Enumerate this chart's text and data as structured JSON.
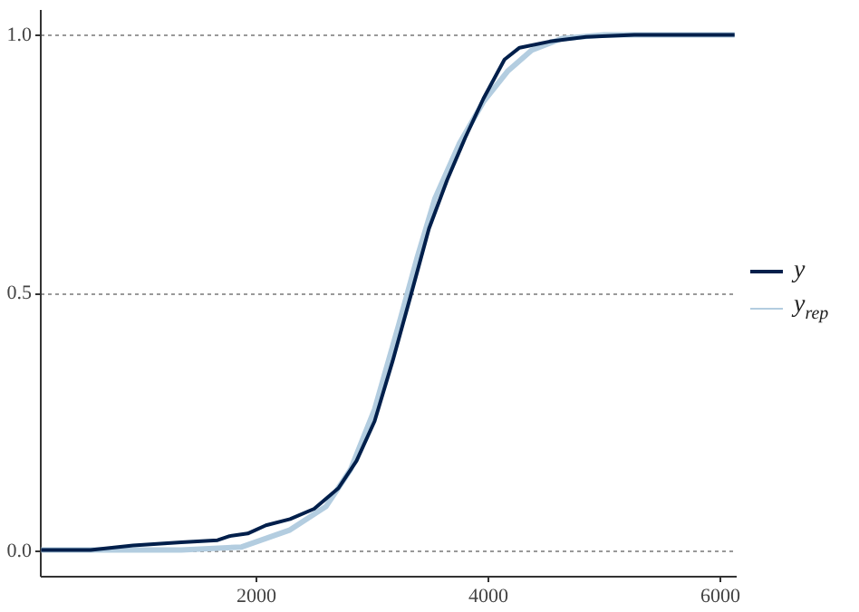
{
  "chart_data": {
    "type": "line",
    "legend": "right",
    "grid": "y",
    "xlim": [
      140,
      6140
    ],
    "ylim": [
      -0.05,
      1.05
    ],
    "xticks": [
      2000,
      4000,
      6000
    ],
    "yticks": [
      {
        "value": 0,
        "label": "0.0"
      },
      {
        "value": 0.5,
        "label": "0.5"
      },
      {
        "value": 1,
        "label": "1.0"
      }
    ],
    "series": [
      {
        "name": "y$_{rep}$",
        "color": "#b3cde0",
        "x": [
          151,
          1359,
          1880,
          2297,
          2609,
          2818,
          3026,
          3234,
          3391,
          3547,
          3755,
          3964,
          4172,
          4380,
          4641,
          5005,
          6130
        ],
        "values": [
          0,
          0,
          0.006,
          0.039,
          0.085,
          0.156,
          0.273,
          0.437,
          0.566,
          0.683,
          0.788,
          0.87,
          0.929,
          0.97,
          0.993,
          1,
          1
        ]
      },
      {
        "name": "y",
        "color": "#011f4b",
        "x": [
          151,
          578,
          943,
          1359,
          1672,
          1776,
          1932,
          2089,
          2297,
          2505,
          2714,
          2870,
          3026,
          3182,
          3339,
          3495,
          3651,
          3807,
          3964,
          4146,
          4276,
          4536,
          4849,
          5266,
          6130
        ],
        "values": [
          0,
          0,
          0.009,
          0.015,
          0.019,
          0.027,
          0.032,
          0.048,
          0.06,
          0.08,
          0.12,
          0.173,
          0.25,
          0.367,
          0.495,
          0.624,
          0.718,
          0.8,
          0.876,
          0.952,
          0.975,
          0.987,
          0.996,
          1,
          1
        ]
      }
    ]
  }
}
